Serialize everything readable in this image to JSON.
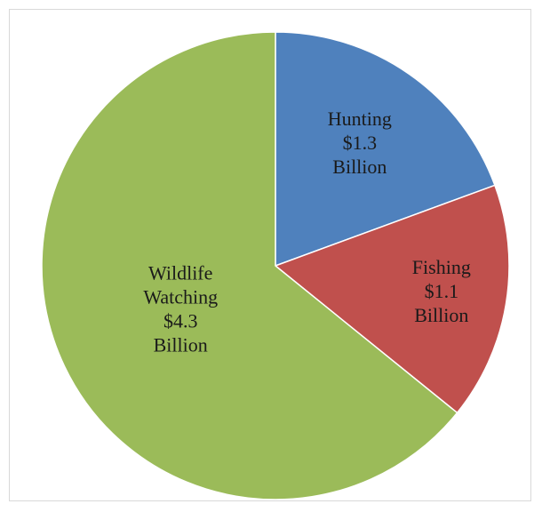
{
  "chart_data": {
    "type": "pie",
    "title": "",
    "start_angle_deg": 0,
    "direction": "clockwise",
    "slices": [
      {
        "label_lines": [
          "Hunting",
          "$1.3",
          "Billion"
        ],
        "category": "Hunting",
        "value": 1.3,
        "color": "#4f81bd"
      },
      {
        "label_lines": [
          "Fishing",
          "$1.1",
          "Billion"
        ],
        "category": "Fishing",
        "value": 1.1,
        "color": "#c0504d"
      },
      {
        "label_lines": [
          "Wildlife",
          "Watching",
          "$4.3",
          "Billion"
        ],
        "category": "Wildlife Watching",
        "value": 4.3,
        "color": "#9bbb59"
      }
    ],
    "legend": "none",
    "unit": "Billion"
  }
}
